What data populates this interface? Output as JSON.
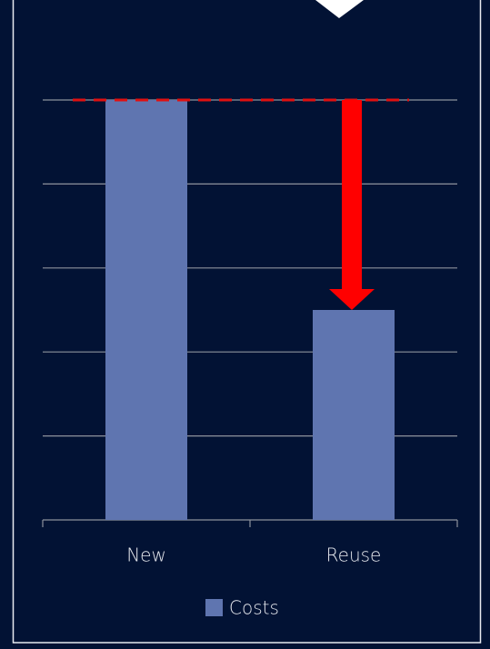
{
  "chart_data": {
    "type": "bar",
    "categories": [
      "New",
      "Reuse"
    ],
    "series": [
      {
        "name": "Costs",
        "color": "#5f75b0",
        "values": [
          5,
          2.5
        ]
      }
    ],
    "ylim": [
      0,
      5
    ],
    "yticks": [
      0,
      1,
      2,
      3,
      4,
      5
    ],
    "grid": true,
    "legend": "bottom"
  }
}
